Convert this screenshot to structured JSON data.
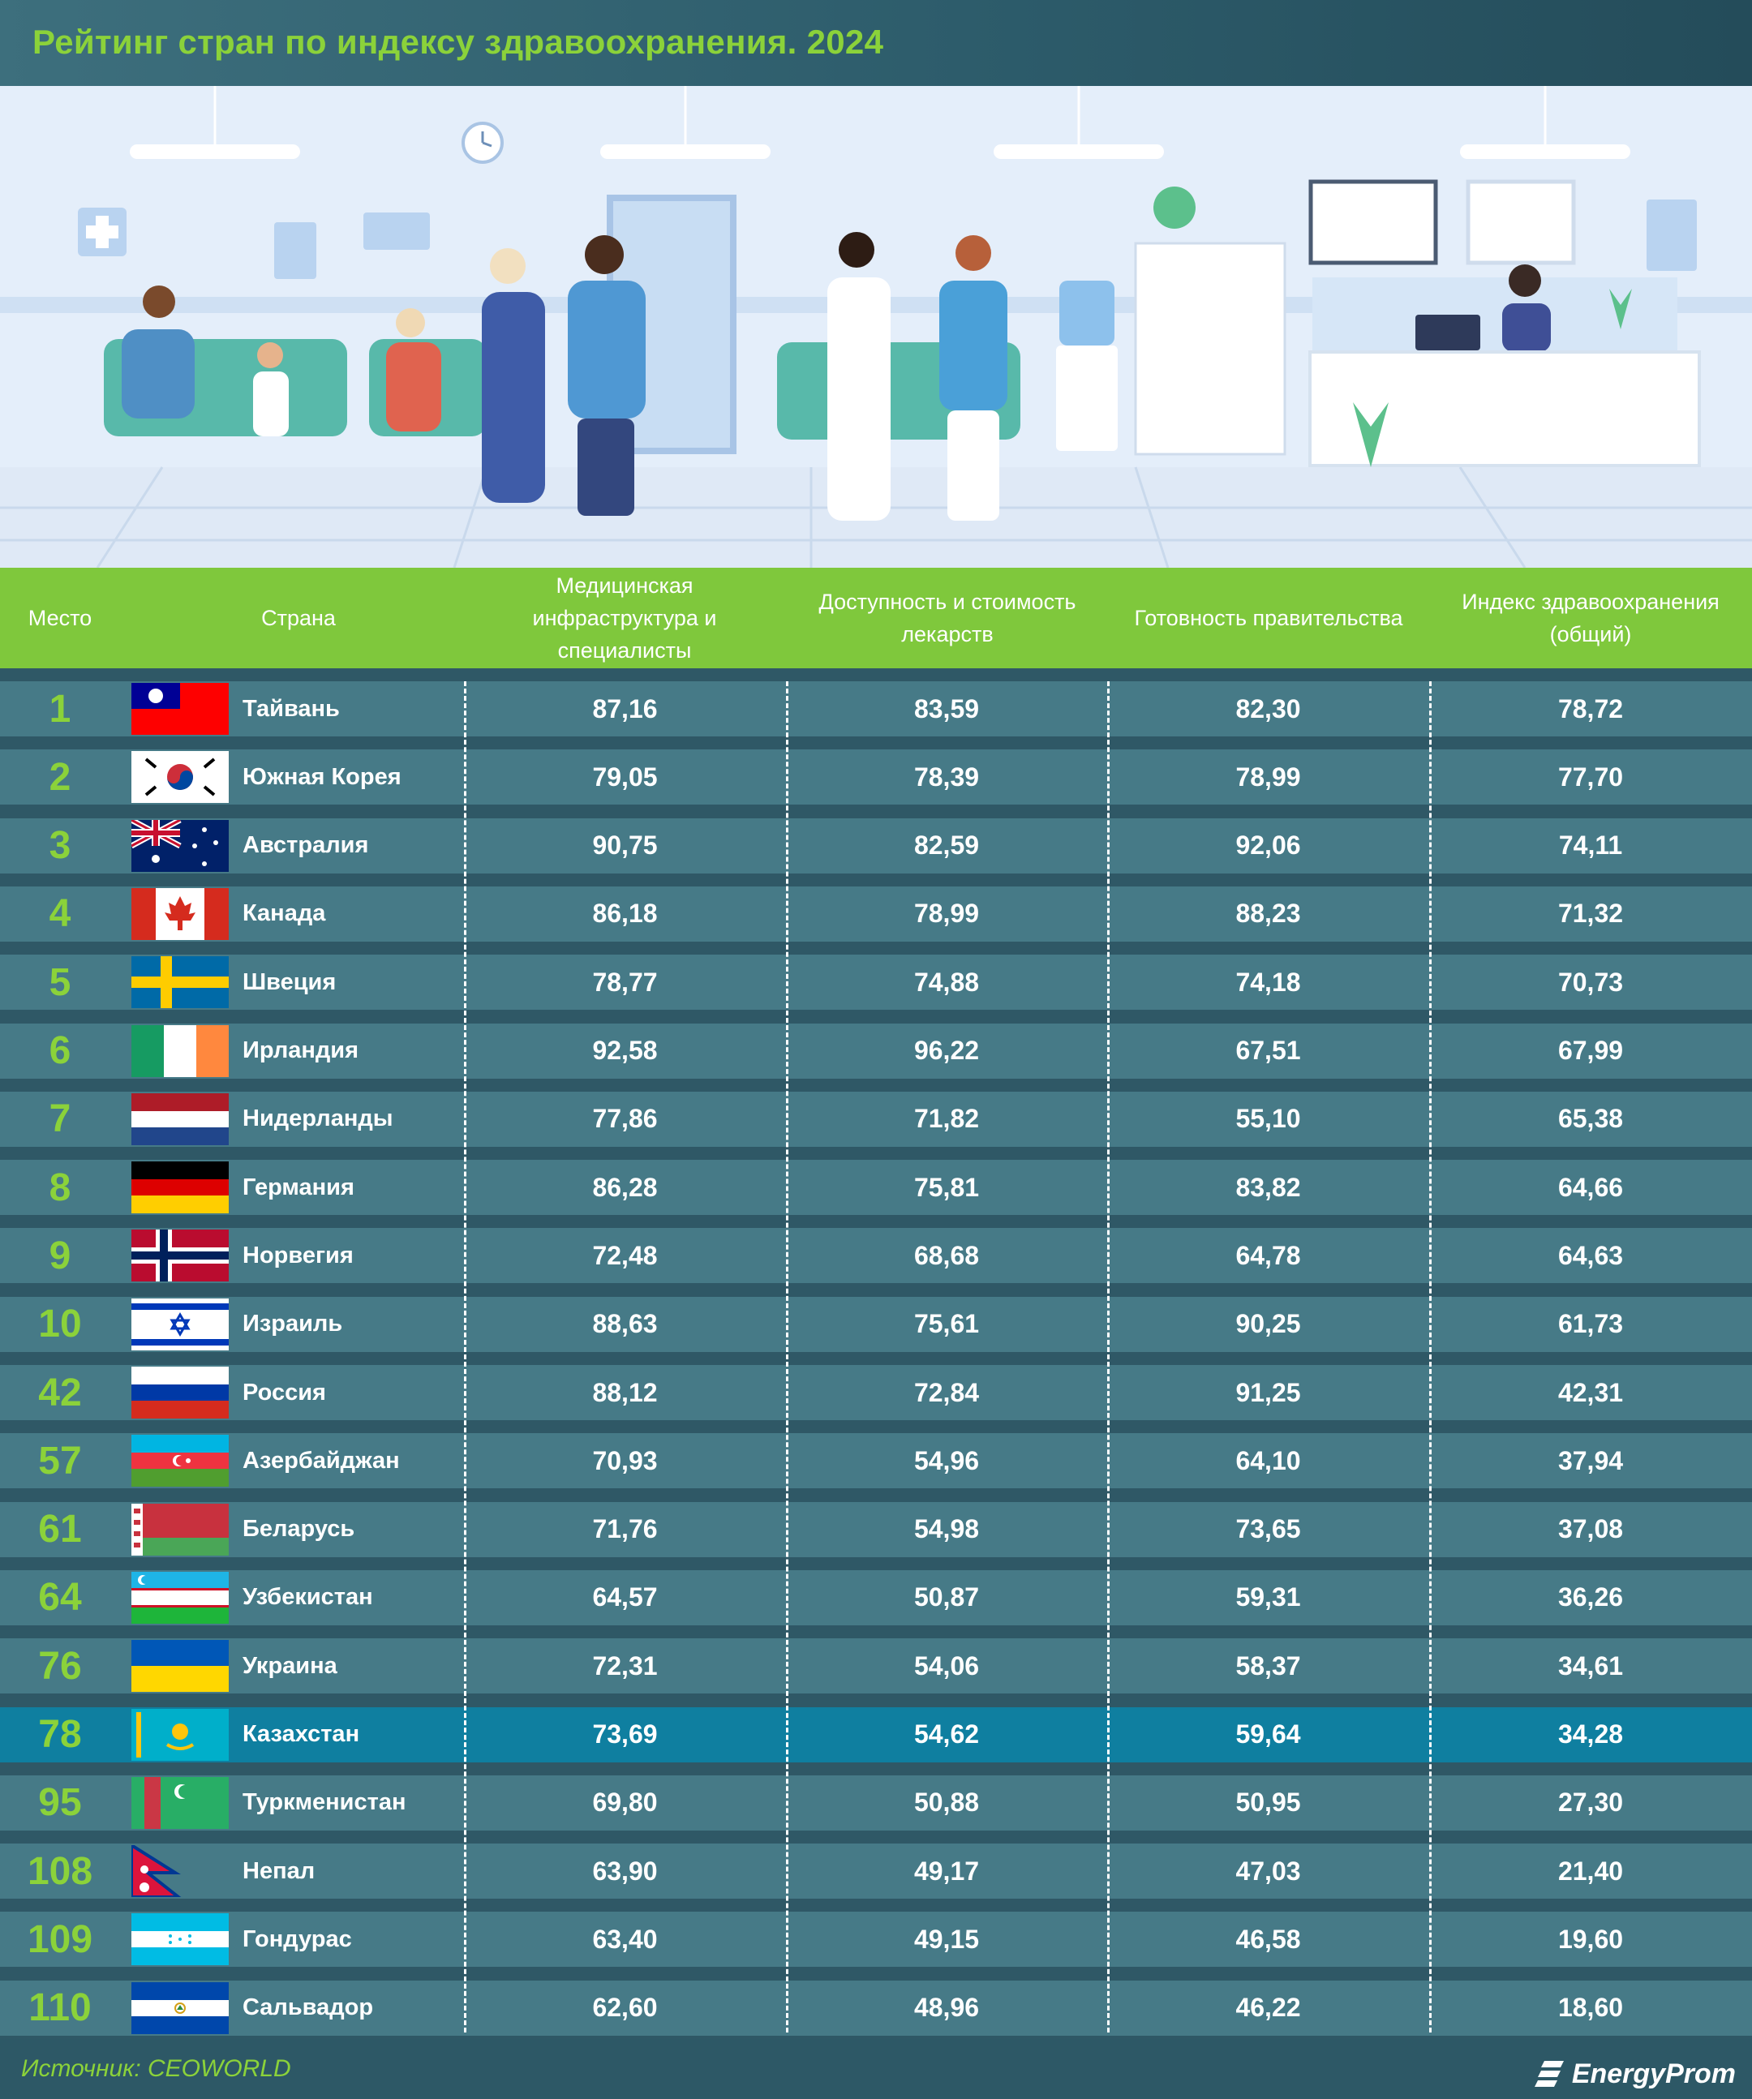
{
  "title": "Рейтинг стран по индексу здравоохранения. 2024",
  "colors": {
    "accent": "#8bd23a",
    "header_bg": "#7fc83c",
    "row_bg": "#467a87",
    "row_highlight": "#0f7fa0",
    "page_bg": "#2f5866"
  },
  "columns": {
    "rank": "Место",
    "country": "Страна",
    "infra": "Медицинская инфраструктура и специалисты",
    "drugs": "Доступность и стоимость лекарств",
    "gov": "Готовность правительства",
    "index": "Индекс здравоохранения (общий)"
  },
  "chart_data": {
    "type": "table",
    "title": "Рейтинг стран по индексу здравоохранения. 2024",
    "columns": [
      "Место",
      "Страна",
      "Медицинская инфраструктура и специалисты",
      "Доступность и стоимость лекарств",
      "Готовность правительства",
      "Индекс здравоохранения (общий)"
    ],
    "highlight_row": "Казахстан",
    "rows": [
      {
        "rank": "1",
        "country": "Тайвань",
        "flag": "taiwan-flag-icon",
        "infra": "87,16",
        "drugs": "83,59",
        "gov": "82,30",
        "index": "78,72"
      },
      {
        "rank": "2",
        "country": "Южная Корея",
        "flag": "south-korea-flag-icon",
        "infra": "79,05",
        "drugs": "78,39",
        "gov": "78,99",
        "index": "77,70"
      },
      {
        "rank": "3",
        "country": "Австралия",
        "flag": "australia-flag-icon",
        "infra": "90,75",
        "drugs": "82,59",
        "gov": "92,06",
        "index": "74,11"
      },
      {
        "rank": "4",
        "country": "Канада",
        "flag": "canada-flag-icon",
        "infra": "86,18",
        "drugs": "78,99",
        "gov": "88,23",
        "index": "71,32"
      },
      {
        "rank": "5",
        "country": "Швеция",
        "flag": "sweden-flag-icon",
        "infra": "78,77",
        "drugs": "74,88",
        "gov": "74,18",
        "index": "70,73"
      },
      {
        "rank": "6",
        "country": "Ирландия",
        "flag": "ireland-flag-icon",
        "infra": "92,58",
        "drugs": "96,22",
        "gov": "67,51",
        "index": "67,99"
      },
      {
        "rank": "7",
        "country": "Нидерланды",
        "flag": "netherlands-flag-icon",
        "infra": "77,86",
        "drugs": "71,82",
        "gov": "55,10",
        "index": "65,38"
      },
      {
        "rank": "8",
        "country": "Германия",
        "flag": "germany-flag-icon",
        "infra": "86,28",
        "drugs": "75,81",
        "gov": "83,82",
        "index": "64,66"
      },
      {
        "rank": "9",
        "country": "Норвегия",
        "flag": "norway-flag-icon",
        "infra": "72,48",
        "drugs": "68,68",
        "gov": "64,78",
        "index": "64,63"
      },
      {
        "rank": "10",
        "country": "Израиль",
        "flag": "israel-flag-icon",
        "infra": "88,63",
        "drugs": "75,61",
        "gov": "90,25",
        "index": "61,73"
      },
      {
        "rank": "42",
        "country": "Россия",
        "flag": "russia-flag-icon",
        "infra": "88,12",
        "drugs": "72,84",
        "gov": "91,25",
        "index": "42,31"
      },
      {
        "rank": "57",
        "country": "Азербайджан",
        "flag": "azerbaijan-flag-icon",
        "infra": "70,93",
        "drugs": "54,96",
        "gov": "64,10",
        "index": "37,94"
      },
      {
        "rank": "61",
        "country": "Беларусь",
        "flag": "belarus-flag-icon",
        "infra": "71,76",
        "drugs": "54,98",
        "gov": "73,65",
        "index": "37,08"
      },
      {
        "rank": "64",
        "country": "Узбекистан",
        "flag": "uzbekistan-flag-icon",
        "infra": "64,57",
        "drugs": "50,87",
        "gov": "59,31",
        "index": "36,26"
      },
      {
        "rank": "76",
        "country": "Украина",
        "flag": "ukraine-flag-icon",
        "infra": "72,31",
        "drugs": "54,06",
        "gov": "58,37",
        "index": "34,61"
      },
      {
        "rank": "78",
        "country": "Казахстан",
        "flag": "kazakhstan-flag-icon",
        "infra": "73,69",
        "drugs": "54,62",
        "gov": "59,64",
        "index": "34,28"
      },
      {
        "rank": "95",
        "country": "Туркменистан",
        "flag": "turkmenistan-flag-icon",
        "infra": "69,80",
        "drugs": "50,88",
        "gov": "50,95",
        "index": "27,30"
      },
      {
        "rank": "108",
        "country": "Непал",
        "flag": "nepal-flag-icon",
        "infra": "63,90",
        "drugs": "49,17",
        "gov": "47,03",
        "index": "21,40"
      },
      {
        "rank": "109",
        "country": "Гондурас",
        "flag": "honduras-flag-icon",
        "infra": "63,40",
        "drugs": "49,15",
        "gov": "46,58",
        "index": "19,60"
      },
      {
        "rank": "110",
        "country": "Сальвадор",
        "flag": "el-salvador-flag-icon",
        "infra": "62,60",
        "drugs": "48,96",
        "gov": "46,22",
        "index": "18,60"
      }
    ]
  },
  "footer": {
    "source": "Источник: CEOWORLD",
    "brand": "EnergyProm"
  }
}
